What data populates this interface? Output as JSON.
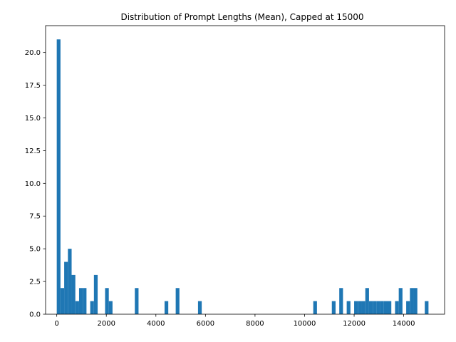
{
  "chart_data": {
    "type": "bar",
    "title": "Distribution of Prompt Lengths (Mean), Capped at 15000",
    "xlabel": "",
    "ylabel": "",
    "xlim": [
      -450,
      15650
    ],
    "ylim": [
      0,
      22.05
    ],
    "bin_width": 150,
    "x_ticks": [
      0,
      2000,
      4000,
      6000,
      8000,
      10000,
      12000,
      14000
    ],
    "x_tick_labels": [
      "0",
      "2000",
      "4000",
      "6000",
      "8000",
      "10000",
      "12000",
      "14000"
    ],
    "y_ticks": [
      0,
      2.5,
      5,
      7.5,
      10,
      12.5,
      15,
      17.5,
      20
    ],
    "y_tick_labels": [
      "0.0",
      "2.5",
      "5.0",
      "7.5",
      "10.0",
      "12.5",
      "15.0",
      "17.5",
      "20.0"
    ],
    "bar_color": "#1f77b4",
    "grid": false,
    "bins": [
      {
        "x": 0,
        "count": 21
      },
      {
        "x": 150,
        "count": 2
      },
      {
        "x": 300,
        "count": 4
      },
      {
        "x": 450,
        "count": 5
      },
      {
        "x": 600,
        "count": 3
      },
      {
        "x": 750,
        "count": 1
      },
      {
        "x": 900,
        "count": 2
      },
      {
        "x": 1050,
        "count": 2
      },
      {
        "x": 1350,
        "count": 1
      },
      {
        "x": 1500,
        "count": 3
      },
      {
        "x": 1950,
        "count": 2
      },
      {
        "x": 2100,
        "count": 1
      },
      {
        "x": 3150,
        "count": 2
      },
      {
        "x": 4350,
        "count": 1
      },
      {
        "x": 4800,
        "count": 2
      },
      {
        "x": 5700,
        "count": 1
      },
      {
        "x": 10350,
        "count": 1
      },
      {
        "x": 11100,
        "count": 1
      },
      {
        "x": 11400,
        "count": 2
      },
      {
        "x": 11700,
        "count": 1
      },
      {
        "x": 12000,
        "count": 1
      },
      {
        "x": 12150,
        "count": 1
      },
      {
        "x": 12300,
        "count": 1
      },
      {
        "x": 12450,
        "count": 2
      },
      {
        "x": 12600,
        "count": 1
      },
      {
        "x": 12750,
        "count": 1
      },
      {
        "x": 12900,
        "count": 1
      },
      {
        "x": 13050,
        "count": 1
      },
      {
        "x": 13200,
        "count": 1
      },
      {
        "x": 13350,
        "count": 1
      },
      {
        "x": 13650,
        "count": 1
      },
      {
        "x": 13800,
        "count": 2
      },
      {
        "x": 14100,
        "count": 1
      },
      {
        "x": 14250,
        "count": 2
      },
      {
        "x": 14400,
        "count": 2
      },
      {
        "x": 14850,
        "count": 1
      }
    ]
  }
}
